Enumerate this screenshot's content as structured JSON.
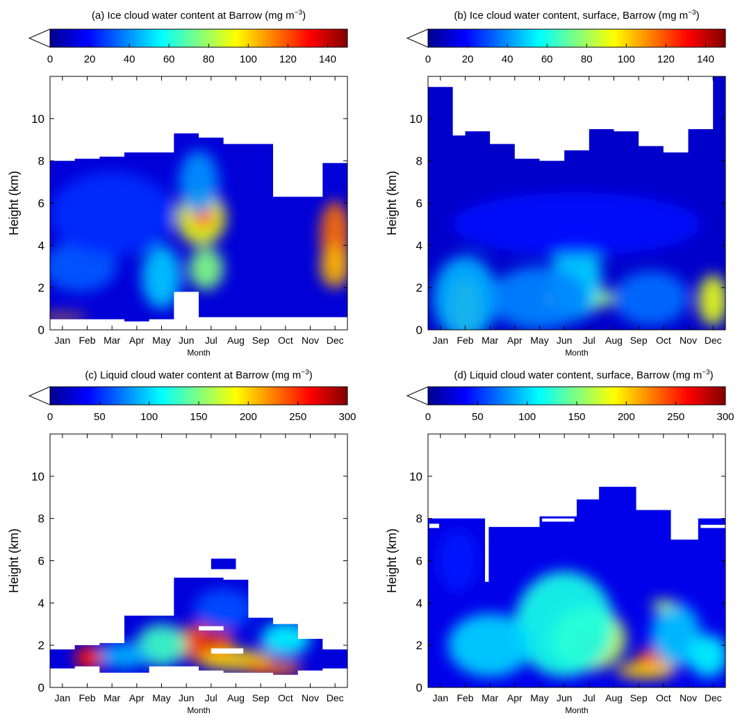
{
  "figure": {
    "month_labels": [
      "Jan",
      "Feb",
      "Mar",
      "Apr",
      "May",
      "Jun",
      "Jul",
      "Aug",
      "Sep",
      "Oct",
      "Nov",
      "Dec"
    ],
    "height_ticks": [
      0,
      2,
      4,
      6,
      8,
      10
    ],
    "colormap": [
      "#00008f",
      "#0000ff",
      "#0080ff",
      "#00ffff",
      "#80ff80",
      "#ffff00",
      "#ff8000",
      "#ff0000",
      "#800000"
    ]
  },
  "chart_data": [
    {
      "id": "a",
      "type": "heatmap",
      "title": "(a) Ice cloud water content at Barrow (mg m",
      "title_exp": "−3",
      "title_close": ")",
      "xlabel": "Month",
      "ylabel": "Height (km)",
      "x_categories": [
        "Jan",
        "Feb",
        "Mar",
        "Apr",
        "May",
        "Jun",
        "Jul",
        "Aug",
        "Sep",
        "Oct",
        "Nov",
        "Dec"
      ],
      "xlim": [
        0,
        12
      ],
      "ylim": [
        0,
        12
      ],
      "colorbar": {
        "min": 0,
        "max": 150,
        "ticks": [
          0,
          20,
          40,
          60,
          80,
          100,
          120,
          140
        ],
        "extend": "min"
      },
      "background_value": 12,
      "columns": [
        {
          "x0": 0,
          "x1": 1,
          "y0": 0.5,
          "y1": 8.0
        },
        {
          "x0": 1,
          "x1": 2,
          "y0": 0.5,
          "y1": 8.1
        },
        {
          "x0": 2,
          "x1": 3,
          "y0": 0.5,
          "y1": 8.2
        },
        {
          "x0": 3,
          "x1": 4,
          "y0": 0.4,
          "y1": 8.4
        },
        {
          "x0": 4,
          "x1": 5,
          "y0": 0.5,
          "y1": 8.4
        },
        {
          "x0": 5,
          "x1": 6,
          "y0": 1.8,
          "y1": 9.3
        },
        {
          "x0": 6,
          "x1": 7,
          "y0": 0.6,
          "y1": 9.1
        },
        {
          "x0": 7,
          "x1": 8,
          "y0": 0.6,
          "y1": 8.8
        },
        {
          "x0": 8,
          "x1": 9,
          "y0": 0.6,
          "y1": 8.8
        },
        {
          "x0": 9,
          "x1": 10,
          "y0": 0.6,
          "y1": 6.3
        },
        {
          "x0": 10,
          "x1": 11,
          "y0": 0.6,
          "y1": 6.3
        },
        {
          "x0": 11,
          "x1": 12,
          "y0": 0.6,
          "y1": 7.9
        }
      ],
      "features": [
        {
          "x": 6.1,
          "y": 5.3,
          "rx": 1.0,
          "ry": 1.3,
          "value": 90
        },
        {
          "x": 6.2,
          "y": 5.3,
          "rx": 0.5,
          "ry": 0.5,
          "value": 115
        },
        {
          "x": 6.3,
          "y": 2.9,
          "rx": 0.7,
          "ry": 1.0,
          "value": 75
        },
        {
          "x": 11.5,
          "y": 4.5,
          "rx": 0.6,
          "ry": 1.6,
          "value": 115
        },
        {
          "x": 11.5,
          "y": 3.0,
          "rx": 0.6,
          "ry": 1.0,
          "value": 105
        },
        {
          "x": 4.5,
          "y": 2.5,
          "rx": 0.8,
          "ry": 1.5,
          "value": 48
        },
        {
          "x": 1.2,
          "y": 3.0,
          "rx": 1.5,
          "ry": 1.2,
          "value": 32
        },
        {
          "x": 2.5,
          "y": 5.5,
          "rx": 2.5,
          "ry": 2.0,
          "value": 25
        },
        {
          "x": 6.0,
          "y": 7.0,
          "rx": 0.8,
          "ry": 1.5,
          "value": 40
        },
        {
          "x": 0.5,
          "y": 0.6,
          "rx": 1.0,
          "ry": 0.15,
          "value": 110
        }
      ]
    },
    {
      "id": "b",
      "type": "heatmap",
      "title": "(b) Ice cloud water content, surface, Barrow (mg m",
      "title_exp": "−3",
      "title_close": ")",
      "xlabel": "Month",
      "ylabel": "Height (km)",
      "x_categories": [
        "Jan",
        "Feb",
        "Mar",
        "Apr",
        "May",
        "Jun",
        "Jul",
        "Aug",
        "Sep",
        "Oct",
        "Nov",
        "Dec"
      ],
      "xlim": [
        0,
        12
      ],
      "ylim": [
        0,
        12
      ],
      "colorbar": {
        "min": 0,
        "max": 150,
        "ticks": [
          0,
          20,
          40,
          60,
          80,
          100,
          120,
          140
        ],
        "extend": "min"
      },
      "background_value": 10,
      "columns": [
        {
          "x0": 0,
          "x1": 1,
          "y0": 0,
          "y1": 11.5
        },
        {
          "x0": 1,
          "x1": 1.5,
          "y0": 0,
          "y1": 9.2
        },
        {
          "x0": 1.5,
          "x1": 2.5,
          "y0": 0,
          "y1": 9.4
        },
        {
          "x0": 2.5,
          "x1": 3.5,
          "y0": 0,
          "y1": 8.8
        },
        {
          "x0": 3.5,
          "x1": 4.5,
          "y0": 0,
          "y1": 8.1
        },
        {
          "x0": 4.5,
          "x1": 5.5,
          "y0": 0,
          "y1": 8.0
        },
        {
          "x0": 5.5,
          "x1": 6.5,
          "y0": 0,
          "y1": 8.5
        },
        {
          "x0": 6.5,
          "x1": 7.5,
          "y0": 0,
          "y1": 9.5
        },
        {
          "x0": 7.5,
          "x1": 8.5,
          "y0": 0,
          "y1": 9.4
        },
        {
          "x0": 8.5,
          "x1": 9.5,
          "y0": 0,
          "y1": 8.7
        },
        {
          "x0": 9.5,
          "x1": 10.5,
          "y0": 0,
          "y1": 8.4
        },
        {
          "x0": 10.5,
          "x1": 11.5,
          "y0": 0,
          "y1": 9.5
        },
        {
          "x0": 11.5,
          "x1": 12,
          "y0": 0,
          "y1": 12
        }
      ],
      "features": [
        {
          "x": 1.5,
          "y": 1.0,
          "rx": 0.6,
          "ry": 1.4,
          "value": 105
        },
        {
          "x": 1.5,
          "y": 1.5,
          "rx": 1.3,
          "ry": 2.0,
          "value": 45
        },
        {
          "x": 6.0,
          "y": 1.5,
          "rx": 1.5,
          "ry": 0.6,
          "value": 80
        },
        {
          "x": 6.0,
          "y": 2.5,
          "rx": 1.0,
          "ry": 2.0,
          "value": 50
        },
        {
          "x": 11.5,
          "y": 1.4,
          "rx": 0.6,
          "ry": 1.2,
          "value": 90
        },
        {
          "x": 4.5,
          "y": 1.5,
          "rx": 2.0,
          "ry": 1.5,
          "value": 38
        },
        {
          "x": 9.0,
          "y": 1.5,
          "rx": 1.5,
          "ry": 1.3,
          "value": 35
        },
        {
          "x": 6.0,
          "y": 5.0,
          "rx": 5.0,
          "ry": 1.5,
          "value": 20
        }
      ]
    },
    {
      "id": "c",
      "type": "heatmap",
      "title": "(c) Liquid cloud water content at Barrow (mg m",
      "title_exp": "−3",
      "title_close": ")",
      "xlabel": "Month",
      "ylabel": "Height (km)",
      "x_categories": [
        "Jan",
        "Feb",
        "Mar",
        "Apr",
        "May",
        "Jun",
        "Jul",
        "Aug",
        "Sep",
        "Oct",
        "Nov",
        "Dec"
      ],
      "xlim": [
        0,
        12
      ],
      "ylim": [
        0,
        12
      ],
      "colorbar": {
        "min": 0,
        "max": 300,
        "ticks": [
          0,
          50,
          100,
          150,
          200,
          250,
          300
        ],
        "extend": "min"
      },
      "background_value": 25,
      "columns": [
        {
          "x0": 0,
          "x1": 1,
          "y0": 0.9,
          "y1": 1.8
        },
        {
          "x0": 1,
          "x1": 2,
          "y0": 1.0,
          "y1": 2.0
        },
        {
          "x0": 2,
          "x1": 3,
          "y0": 0.7,
          "y1": 2.1
        },
        {
          "x0": 3,
          "x1": 4,
          "y0": 0.7,
          "y1": 3.4
        },
        {
          "x0": 4,
          "x1": 5,
          "y0": 1.0,
          "y1": 3.4
        },
        {
          "x0": 5,
          "x1": 6,
          "y0": 1.0,
          "y1": 5.2
        },
        {
          "x0": 6,
          "x1": 7,
          "y0": 0.8,
          "y1": 5.2
        },
        {
          "x0": 7,
          "x1": 8,
          "y0": 0.7,
          "y1": 5.1
        },
        {
          "x0": 8,
          "x1": 9,
          "y0": 0.7,
          "y1": 3.3
        },
        {
          "x0": 9,
          "x1": 10,
          "y0": 0.6,
          "y1": 3.0
        },
        {
          "x0": 10,
          "x1": 11,
          "y0": 0.8,
          "y1": 2.3
        },
        {
          "x0": 11,
          "x1": 12,
          "y0": 0.9,
          "y1": 1.8
        },
        {
          "x0": 6.5,
          "x1": 7.5,
          "y0": 5.6,
          "y1": 6.1
        }
      ],
      "features": [
        {
          "x": 6.2,
          "y": 2.1,
          "rx": 1.2,
          "ry": 0.9,
          "value": 240
        },
        {
          "x": 6.6,
          "y": 2.4,
          "rx": 0.5,
          "ry": 0.4,
          "value": 285
        },
        {
          "x": 1.6,
          "y": 1.4,
          "rx": 0.6,
          "ry": 0.6,
          "value": 255
        },
        {
          "x": 7.5,
          "y": 1.3,
          "rx": 1.5,
          "ry": 0.5,
          "value": 200
        },
        {
          "x": 9.0,
          "y": 0.9,
          "rx": 1.2,
          "ry": 0.35,
          "value": 230
        },
        {
          "x": 4.5,
          "y": 2.0,
          "rx": 1.0,
          "ry": 1.0,
          "value": 130
        },
        {
          "x": 3.0,
          "y": 1.5,
          "rx": 1.0,
          "ry": 0.6,
          "value": 90
        },
        {
          "x": 9.5,
          "y": 2.3,
          "rx": 1.0,
          "ry": 0.8,
          "value": 110
        },
        {
          "x": 7.0,
          "y": 3.7,
          "rx": 1.2,
          "ry": 1.0,
          "value": 60
        }
      ],
      "blank_rects": [
        {
          "x0": 6.0,
          "x1": 7.0,
          "y0": 2.7,
          "y1": 2.9
        },
        {
          "x0": 6.5,
          "x1": 7.8,
          "y0": 1.6,
          "y1": 1.85
        }
      ]
    },
    {
      "id": "d",
      "type": "heatmap",
      "title": "(d) Liquid cloud water content, surface, Barrow (mg m",
      "title_exp": "−3",
      "title_close": ")",
      "xlabel": "Month",
      "ylabel": "Height (km)",
      "x_categories": [
        "Jan",
        "Feb",
        "Mar",
        "Apr",
        "May",
        "Jun",
        "Jul",
        "Aug",
        "Sep",
        "Oct",
        "Nov",
        "Dec"
      ],
      "xlim": [
        0,
        12
      ],
      "ylim": [
        0,
        12
      ],
      "colorbar": {
        "min": 0,
        "max": 300,
        "ticks": [
          0,
          50,
          100,
          150,
          200,
          250,
          300
        ],
        "extend": "min"
      },
      "background_value": 30,
      "columns": [
        {
          "x0": 0,
          "x1": 0.5,
          "y0": 0,
          "y1": 8.0
        },
        {
          "x0": 0.5,
          "x1": 2.3,
          "y0": 0,
          "y1": 8.0
        },
        {
          "x0": 2.3,
          "x1": 2.45,
          "y0": 0,
          "y1": 5.0
        },
        {
          "x0": 2.45,
          "x1": 4.5,
          "y0": 0,
          "y1": 7.6
        },
        {
          "x0": 4.5,
          "x1": 6.0,
          "y0": 0,
          "y1": 8.1
        },
        {
          "x0": 6.0,
          "x1": 6.9,
          "y0": 0,
          "y1": 8.9
        },
        {
          "x0": 6.9,
          "x1": 8.4,
          "y0": 0,
          "y1": 9.5
        },
        {
          "x0": 8.4,
          "x1": 9.8,
          "y0": 0,
          "y1": 8.4
        },
        {
          "x0": 9.8,
          "x1": 10.9,
          "y0": 0,
          "y1": 7.0
        },
        {
          "x0": 10.9,
          "x1": 12,
          "y0": 0,
          "y1": 8.0
        }
      ],
      "features": [
        {
          "x": 6.5,
          "y": 2.3,
          "rx": 1.5,
          "ry": 1.5,
          "value": 170
        },
        {
          "x": 6.6,
          "y": 1.9,
          "rx": 0.6,
          "ry": 0.5,
          "value": 235
        },
        {
          "x": 9.2,
          "y": 1.3,
          "rx": 0.8,
          "ry": 0.6,
          "value": 260
        },
        {
          "x": 8.8,
          "y": 0.8,
          "rx": 1.2,
          "ry": 0.4,
          "value": 200
        },
        {
          "x": 5.5,
          "y": 3.0,
          "rx": 2.0,
          "ry": 2.5,
          "value": 120
        },
        {
          "x": 2.5,
          "y": 2.0,
          "rx": 1.7,
          "ry": 1.5,
          "value": 100
        },
        {
          "x": 10.0,
          "y": 2.5,
          "rx": 1.0,
          "ry": 1.5,
          "value": 95
        },
        {
          "x": 9.5,
          "y": 3.9,
          "rx": 0.5,
          "ry": 0.25,
          "value": 165
        },
        {
          "x": 11.3,
          "y": 1.5,
          "rx": 0.8,
          "ry": 1.0,
          "value": 110
        },
        {
          "x": 1.2,
          "y": 6.0,
          "rx": 0.8,
          "ry": 1.5,
          "value": 45
        }
      ],
      "blank_rects": [
        {
          "x0": 0.05,
          "x1": 0.45,
          "y0": 7.55,
          "y1": 7.75
        },
        {
          "x0": 4.6,
          "x1": 5.9,
          "y0": 7.85,
          "y1": 8.0
        },
        {
          "x0": 11.0,
          "x1": 12,
          "y0": 7.55,
          "y1": 7.7
        }
      ]
    }
  ]
}
